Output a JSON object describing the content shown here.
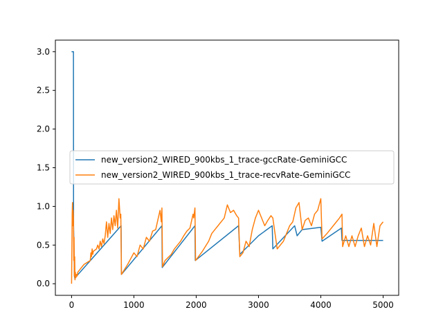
{
  "chart_data": {
    "type": "line",
    "title": "",
    "xlabel": "",
    "ylabel": "",
    "xlim": [
      -260,
      5250
    ],
    "ylim": [
      -0.15,
      3.15
    ],
    "x_ticks": [
      0,
      1000,
      2000,
      3000,
      4000,
      5000
    ],
    "x_tick_labels": [
      "0",
      "1000",
      "2000",
      "3000",
      "4000",
      "5000"
    ],
    "y_ticks": [
      0.0,
      0.5,
      1.0,
      1.5,
      2.0,
      2.5,
      3.0
    ],
    "y_tick_labels": [
      "0.0",
      "0.5",
      "1.0",
      "1.5",
      "2.0",
      "2.5",
      "3.0"
    ],
    "grid": false,
    "legend_position": "center-left",
    "series": [
      {
        "name": "new_version2_WIRED_900kbs_1_trace-gccRate-GeminiGCC",
        "color": "#1f77b4",
        "x": [
          0,
          30,
          32,
          38,
          45,
          55,
          60,
          795,
          800,
          1450,
          1455,
          1980,
          1985,
          2680,
          2700,
          3000,
          3220,
          3230,
          3580,
          3620,
          3700,
          4000,
          4020,
          4330,
          4340,
          5000
        ],
        "y": [
          3.0,
          3.0,
          0.75,
          0.5,
          0.1,
          0.06,
          0.08,
          0.75,
          0.12,
          0.75,
          0.21,
          0.75,
          0.3,
          0.75,
          0.38,
          0.62,
          0.75,
          0.45,
          0.75,
          0.62,
          0.7,
          0.73,
          0.55,
          0.72,
          0.56,
          0.56
        ]
      },
      {
        "name": "new_version2_WIRED_900kbs_1_trace-recvRate-GeminiGCC",
        "color": "#ff7f0e",
        "x": [
          0,
          10,
          15,
          20,
          25,
          30,
          35,
          40,
          45,
          50,
          55,
          60,
          70,
          80,
          90,
          100,
          200,
          300,
          310,
          320,
          330,
          340,
          350,
          400,
          420,
          440,
          460,
          480,
          500,
          520,
          540,
          560,
          580,
          600,
          620,
          640,
          660,
          680,
          700,
          720,
          740,
          760,
          780,
          790,
          800,
          900,
          1000,
          1050,
          1100,
          1150,
          1200,
          1250,
          1300,
          1350,
          1400,
          1420,
          1440,
          1450,
          1460,
          1500,
          1600,
          1650,
          1700,
          1750,
          1800,
          1850,
          1900,
          1950,
          1960,
          1980,
          1990,
          2100,
          2200,
          2250,
          2300,
          2350,
          2400,
          2450,
          2500,
          2550,
          2600,
          2650,
          2680,
          2700,
          2750,
          2800,
          2850,
          2900,
          2950,
          3000,
          3100,
          3150,
          3200,
          3230,
          3300,
          3400,
          3450,
          3500,
          3550,
          3600,
          3650,
          3700,
          3750,
          3800,
          3850,
          3900,
          3950,
          4000,
          4020,
          4100,
          4150,
          4200,
          4250,
          4300,
          4340,
          4350,
          4400,
          4450,
          4500,
          4550,
          4600,
          4650,
          4700,
          4750,
          4800,
          4850,
          4900,
          4950,
          5000
        ],
        "y": [
          0.0,
          0.9,
          1.05,
          0.75,
          0.95,
          0.85,
          0.3,
          0.6,
          0.1,
          0.35,
          0.05,
          0.15,
          0.08,
          0.12,
          0.1,
          0.15,
          0.25,
          0.3,
          0.4,
          0.35,
          0.45,
          0.38,
          0.42,
          0.45,
          0.5,
          0.45,
          0.55,
          0.48,
          0.58,
          0.52,
          0.62,
          0.8,
          0.6,
          0.78,
          0.65,
          0.85,
          0.7,
          0.88,
          0.75,
          0.95,
          0.72,
          1.1,
          0.85,
          0.9,
          0.12,
          0.25,
          0.4,
          0.35,
          0.5,
          0.45,
          0.6,
          0.55,
          0.68,
          0.7,
          0.88,
          0.95,
          0.8,
          0.98,
          0.22,
          0.3,
          0.38,
          0.45,
          0.5,
          0.55,
          0.62,
          0.68,
          0.72,
          0.9,
          0.85,
          0.98,
          0.3,
          0.42,
          0.55,
          0.65,
          0.7,
          0.75,
          0.8,
          0.85,
          1.02,
          0.92,
          0.95,
          0.88,
          0.85,
          0.35,
          0.4,
          0.55,
          0.48,
          0.7,
          0.85,
          0.95,
          0.75,
          0.82,
          0.88,
          0.85,
          0.45,
          0.55,
          0.65,
          0.75,
          0.8,
          0.98,
          1.05,
          0.7,
          0.82,
          0.85,
          0.75,
          0.9,
          0.95,
          1.1,
          0.58,
          0.65,
          0.7,
          0.75,
          0.8,
          0.85,
          0.9,
          0.48,
          0.62,
          0.48,
          0.62,
          0.48,
          0.62,
          0.72,
          0.48,
          0.62,
          0.5,
          0.78,
          0.48,
          0.75,
          0.8
        ]
      }
    ]
  }
}
